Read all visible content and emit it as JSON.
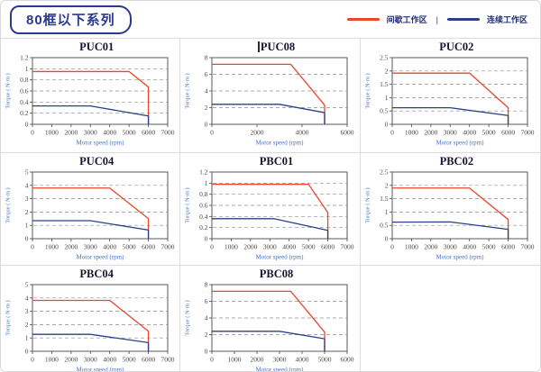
{
  "header": {
    "series_badge": "80框以下系列",
    "legend_separator": "|",
    "legend": [
      {
        "label": "间歇工作区",
        "color": "#e8472b"
      },
      {
        "label": "连续工作区",
        "color": "#2b4187"
      }
    ]
  },
  "colors": {
    "intermittent_zone": "#e8472b",
    "continuous_zone": "#2b4187",
    "axis_label": "#4472c4",
    "tick_text": "#4c4742",
    "plot_border": "#5a5a5a",
    "gridline": "#8c8c8c",
    "panel_border": "#dcdcdc",
    "badge_navy": "#2b3a8f"
  },
  "chart_data": [
    {
      "type": "line",
      "title": "PUC01",
      "caret": false,
      "xlabel": "Motor speed (rpm)",
      "ylabel": "Torque ( N·m )",
      "xlim": [
        0,
        7000
      ],
      "ylim": [
        0,
        1.2
      ],
      "xticks": [
        0,
        1000,
        2000,
        3000,
        4000,
        5000,
        6000,
        7000
      ],
      "yticks": [
        0,
        0.2,
        0.4,
        0.6,
        0.8,
        1,
        1.2
      ],
      "grid": "horizontal-dashed",
      "legend_position": "none",
      "series": [
        {
          "name": "间歇工作区",
          "color": "#e8472b",
          "points": [
            [
              0,
              0.95
            ],
            [
              5000,
              0.95
            ],
            [
              6000,
              0.67
            ],
            [
              6000,
              0
            ]
          ]
        },
        {
          "name": "连续工作区",
          "color": "#2b4187",
          "points": [
            [
              0,
              0.33
            ],
            [
              3000,
              0.33
            ],
            [
              6000,
              0.15
            ],
            [
              6000,
              0
            ]
          ]
        }
      ]
    },
    {
      "type": "line",
      "title": "PUC08",
      "caret": true,
      "xlabel": "Motor speed (rpm)",
      "ylabel": "Torque ( N·m )",
      "xlim": [
        0,
        6000
      ],
      "ylim": [
        0,
        8
      ],
      "xticks": [
        0,
        2000,
        4000,
        6000
      ],
      "yticks": [
        0,
        2,
        4,
        6,
        8
      ],
      "grid": "horizontal-dashed",
      "legend_position": "none",
      "series": [
        {
          "name": "间歇工作区",
          "color": "#e8472b",
          "points": [
            [
              0,
              7.2
            ],
            [
              3500,
              7.2
            ],
            [
              5000,
              2.3
            ],
            [
              5000,
              0
            ]
          ]
        },
        {
          "name": "连续工作区",
          "color": "#2b4187",
          "points": [
            [
              0,
              2.4
            ],
            [
              3000,
              2.4
            ],
            [
              5000,
              1.4
            ],
            [
              5000,
              0
            ]
          ]
        }
      ]
    },
    {
      "type": "line",
      "title": "PUC02",
      "caret": false,
      "xlabel": "Motor speed (rpm)",
      "ylabel": "Torque ( N·m )",
      "xlim": [
        0,
        7000
      ],
      "ylim": [
        0,
        2.5
      ],
      "xticks": [
        0,
        1000,
        2000,
        3000,
        4000,
        5000,
        6000,
        7000
      ],
      "yticks": [
        0,
        0.5,
        1,
        1.5,
        2,
        2.5
      ],
      "grid": "horizontal-dashed",
      "legend_position": "none",
      "series": [
        {
          "name": "间歇工作区",
          "color": "#e8472b",
          "points": [
            [
              0,
              1.92
            ],
            [
              4000,
              1.92
            ],
            [
              6000,
              0.62
            ],
            [
              6000,
              0
            ]
          ]
        },
        {
          "name": "连续工作区",
          "color": "#2b4187",
          "points": [
            [
              0,
              0.62
            ],
            [
              3000,
              0.62
            ],
            [
              6000,
              0.33
            ],
            [
              6000,
              0
            ]
          ]
        }
      ]
    },
    {
      "type": "line",
      "title": "PUC04",
      "caret": false,
      "xlabel": "Motor speed (rpm)",
      "ylabel": "Torque ( N·m )",
      "xlim": [
        0,
        7000
      ],
      "ylim": [
        0,
        5
      ],
      "xticks": [
        0,
        1000,
        2000,
        3000,
        4000,
        5000,
        6000,
        7000
      ],
      "yticks": [
        0,
        1,
        2,
        3,
        4,
        5
      ],
      "grid": "horizontal-dashed",
      "legend_position": "none",
      "series": [
        {
          "name": "间歇工作区",
          "color": "#e8472b",
          "points": [
            [
              0,
              3.8
            ],
            [
              4000,
              3.8
            ],
            [
              6000,
              1.5
            ],
            [
              6000,
              0
            ]
          ]
        },
        {
          "name": "连续工作区",
          "color": "#2b4187",
          "points": [
            [
              0,
              1.35
            ],
            [
              3000,
              1.35
            ],
            [
              6000,
              0.65
            ],
            [
              6000,
              0
            ]
          ]
        }
      ]
    },
    {
      "type": "line",
      "title": "PBC01",
      "caret": false,
      "xlabel": "Motor speed (rpm)",
      "ylabel": "Torque ( N·m )",
      "xlim": [
        0,
        7000
      ],
      "ylim": [
        0,
        1.2
      ],
      "xticks": [
        0,
        1000,
        2000,
        3000,
        4000,
        5000,
        6000,
        7000
      ],
      "yticks": [
        0,
        0.2,
        0.4,
        0.6,
        0.8,
        1,
        1.2
      ],
      "grid": "horizontal-dashed",
      "legend_position": "none",
      "series": [
        {
          "name": "间歇工作区",
          "color": "#e8472b",
          "points": [
            [
              0,
              0.98
            ],
            [
              5000,
              0.98
            ],
            [
              6000,
              0.47
            ],
            [
              6000,
              0
            ]
          ]
        },
        {
          "name": "连续工作区",
          "color": "#2b4187",
          "points": [
            [
              0,
              0.36
            ],
            [
              3200,
              0.36
            ],
            [
              6000,
              0.15
            ],
            [
              6000,
              0
            ]
          ]
        }
      ]
    },
    {
      "type": "line",
      "title": "PBC02",
      "caret": false,
      "xlabel": "Motor speed (rpm)",
      "ylabel": "Torque ( N·m )",
      "xlim": [
        0,
        7000
      ],
      "ylim": [
        0,
        2.5
      ],
      "xticks": [
        0,
        1000,
        2000,
        3000,
        4000,
        5000,
        6000,
        7000
      ],
      "yticks": [
        0,
        0.5,
        1,
        1.5,
        2,
        2.5
      ],
      "grid": "horizontal-dashed",
      "legend_position": "none",
      "series": [
        {
          "name": "间歇工作区",
          "color": "#e8472b",
          "points": [
            [
              0,
              1.9
            ],
            [
              4000,
              1.9
            ],
            [
              6000,
              0.72
            ],
            [
              6000,
              0
            ]
          ]
        },
        {
          "name": "连续工作区",
          "color": "#2b4187",
          "points": [
            [
              0,
              0.62
            ],
            [
              3000,
              0.63
            ],
            [
              6000,
              0.35
            ],
            [
              6000,
              0
            ]
          ]
        }
      ]
    },
    {
      "type": "line",
      "title": "PBC04",
      "caret": false,
      "xlabel": "Motor speed (rpm)",
      "ylabel": "Torque ( N·m )",
      "xlim": [
        0,
        7000
      ],
      "ylim": [
        0,
        5
      ],
      "xticks": [
        0,
        1000,
        2000,
        3000,
        4000,
        5000,
        6000,
        7000
      ],
      "yticks": [
        0,
        1,
        2,
        3,
        4,
        5
      ],
      "grid": "horizontal-dashed",
      "legend_position": "none",
      "series": [
        {
          "name": "间歇工作区",
          "color": "#e8472b",
          "points": [
            [
              0,
              3.82
            ],
            [
              4000,
              3.82
            ],
            [
              6000,
              1.5
            ],
            [
              6000,
              0
            ]
          ]
        },
        {
          "name": "连续工作区",
          "color": "#2b4187",
          "points": [
            [
              0,
              1.27
            ],
            [
              3000,
              1.27
            ],
            [
              6000,
              0.65
            ],
            [
              6000,
              0
            ]
          ]
        }
      ]
    },
    {
      "type": "line",
      "title": "PBC08",
      "caret": false,
      "xlabel": "Motor speed (rpm)",
      "ylabel": "Torque ( N·m )",
      "xlim": [
        0,
        6000
      ],
      "ylim": [
        0,
        8
      ],
      "xticks": [
        0,
        1000,
        2000,
        3000,
        4000,
        5000,
        6000
      ],
      "yticks": [
        0,
        2,
        4,
        6,
        8
      ],
      "grid": "horizontal-dashed",
      "legend_position": "none",
      "series": [
        {
          "name": "间歇工作区",
          "color": "#e8472b",
          "points": [
            [
              0,
              7.2
            ],
            [
              3500,
              7.2
            ],
            [
              5000,
              2.3
            ],
            [
              5000,
              0
            ]
          ]
        },
        {
          "name": "连续工作区",
          "color": "#2b4187",
          "points": [
            [
              0,
              2.4
            ],
            [
              3000,
              2.4
            ],
            [
              5000,
              1.5
            ],
            [
              5000,
              0
            ]
          ]
        }
      ]
    }
  ]
}
